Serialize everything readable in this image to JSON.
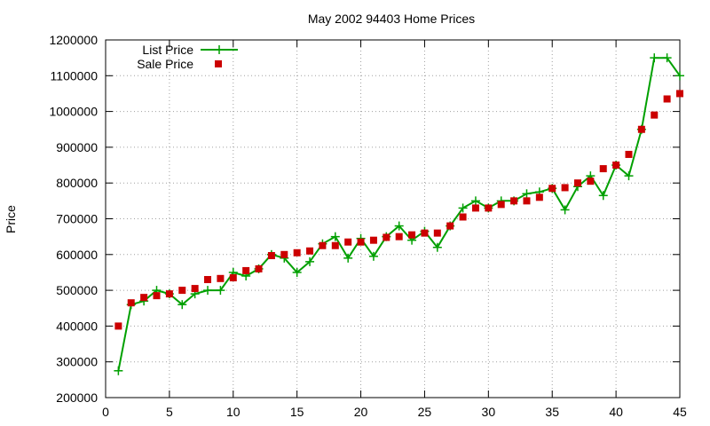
{
  "chart_data": {
    "type": "line",
    "title": "May 2002 94403 Home Prices",
    "xlabel": "",
    "ylabel": "Price",
    "xlim": [
      0,
      45
    ],
    "ylim": [
      200000,
      1200000
    ],
    "xticks": [
      0,
      5,
      10,
      15,
      20,
      25,
      30,
      35,
      40,
      45
    ],
    "yticks": [
      200000,
      300000,
      400000,
      500000,
      600000,
      700000,
      800000,
      900000,
      1000000,
      1100000,
      1200000
    ],
    "grid": true,
    "legend_position": "top-left",
    "x": [
      1,
      2,
      3,
      4,
      5,
      6,
      7,
      8,
      9,
      10,
      11,
      12,
      13,
      14,
      15,
      16,
      17,
      18,
      19,
      20,
      21,
      22,
      23,
      24,
      25,
      26,
      27,
      28,
      29,
      30,
      31,
      32,
      33,
      34,
      35,
      36,
      37,
      38,
      39,
      40,
      41,
      42,
      43,
      44,
      45
    ],
    "series": [
      {
        "name": "List Price",
        "style": "lines+crosses",
        "color": "#00a000",
        "values": [
          275000,
          460000,
          470000,
          500000,
          490000,
          460000,
          490000,
          500000,
          500000,
          550000,
          540000,
          560000,
          600000,
          590000,
          550000,
          580000,
          630000,
          650000,
          590000,
          645000,
          595000,
          650000,
          680000,
          640000,
          665000,
          620000,
          680000,
          730000,
          750000,
          730000,
          750000,
          750000,
          770000,
          775000,
          785000,
          725000,
          790000,
          820000,
          765000,
          850000,
          820000,
          950000,
          1150000,
          1150000,
          1100000
        ]
      },
      {
        "name": "Sale Price",
        "style": "squares",
        "color": "#cc0000",
        "values": [
          400000,
          465000,
          480000,
          485000,
          490000,
          500000,
          505000,
          530000,
          533000,
          535000,
          555000,
          560000,
          597000,
          600000,
          605000,
          610000,
          625000,
          625000,
          635000,
          635000,
          640000,
          648000,
          650000,
          655000,
          660000,
          660000,
          680000,
          705000,
          730000,
          730000,
          740000,
          750000,
          750000,
          760000,
          785000,
          787000,
          800000,
          805000,
          840000,
          850000,
          880000,
          950000,
          990000,
          1035000,
          1050000
        ]
      }
    ]
  }
}
